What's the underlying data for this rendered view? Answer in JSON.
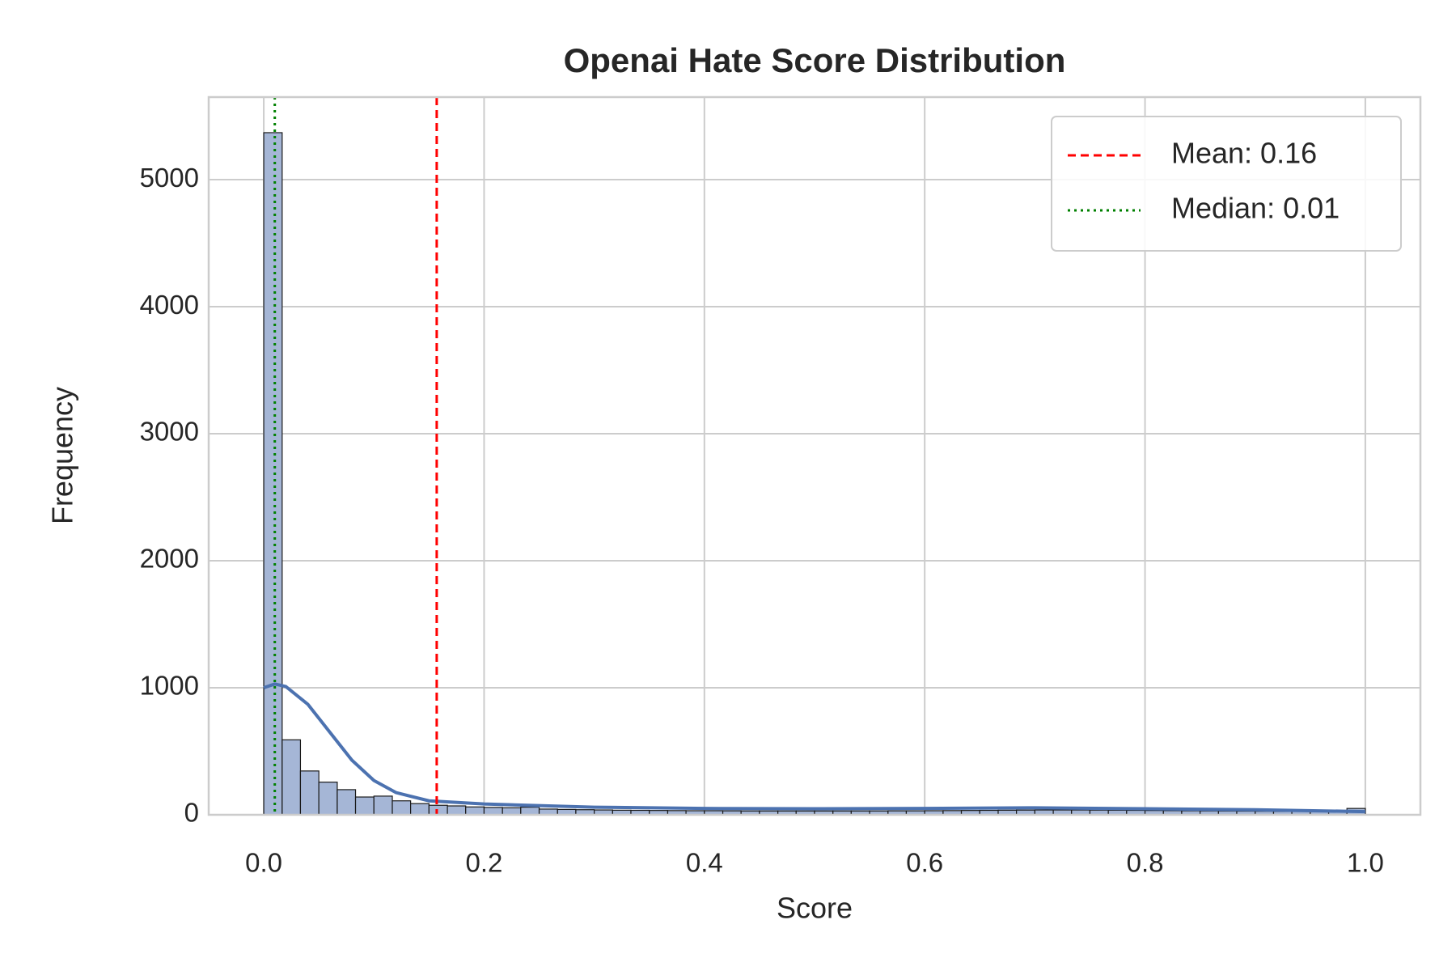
{
  "chart_data": {
    "type": "histogram",
    "title": "Openai Hate Score Distribution",
    "x_label": "Score",
    "y_label": "Frequency",
    "bins": [
      0,
      0.0167,
      0.0333,
      0.05,
      0.0667,
      0.0833,
      0.1,
      0.1167,
      0.1333,
      0.15,
      0.1667,
      0.1833,
      0.2,
      0.2167,
      0.2333,
      0.25,
      0.2667,
      0.2833,
      0.3,
      0.3167,
      0.3333,
      0.35,
      0.3667,
      0.3833,
      0.4,
      0.4167,
      0.4333,
      0.45,
      0.4667,
      0.4833,
      0.5,
      0.5167,
      0.5333,
      0.55,
      0.5667,
      0.5833,
      0.6,
      0.6167,
      0.6333,
      0.65,
      0.6667,
      0.6833,
      0.7,
      0.7167,
      0.7333,
      0.75,
      0.7667,
      0.7833,
      0.8,
      0.8167,
      0.8333,
      0.85,
      0.8667,
      0.8833,
      0.9,
      0.9167,
      0.9333,
      0.95,
      0.9667,
      0.9833,
      1
    ],
    "values": [
      5370,
      590,
      345,
      257,
      198,
      140,
      147,
      110,
      88,
      75,
      70,
      62,
      58,
      55,
      60,
      45,
      42,
      40,
      38,
      36,
      35,
      34,
      33,
      32,
      32,
      31,
      30,
      30,
      30,
      30,
      30,
      30,
      30,
      30,
      31,
      31,
      32,
      33,
      34,
      35,
      36,
      37,
      38,
      38,
      38,
      37,
      36,
      35,
      34,
      33,
      32,
      31,
      30,
      29,
      28,
      27,
      26,
      25,
      24,
      50
    ],
    "color": "#a5b6d6",
    "kde": {
      "color": "#4c72b0",
      "x": [
        0,
        0.01,
        0.02,
        0.04,
        0.06,
        0.08,
        0.1,
        0.12,
        0.15,
        0.2,
        0.3,
        0.4,
        0.5,
        0.6,
        0.7,
        0.8,
        0.9,
        1
      ],
      "values": [
        1000,
        1030,
        1010,
        870,
        650,
        430,
        270,
        175,
        110,
        85,
        60,
        50,
        48,
        50,
        55,
        48,
        40,
        25
      ]
    },
    "lines": [
      {
        "name": "Mean: 0.16",
        "value": 0.157,
        "color": "#ff0000",
        "style": "dashed"
      },
      {
        "name": "Median: 0.01",
        "value": 0.01,
        "color": "#008000",
        "style": "dotted"
      }
    ],
    "xlim": [
      -0.05,
      1.05
    ],
    "ylim": [
      0,
      5650
    ],
    "xticks": [
      {
        "value": 0,
        "label": "0.0"
      },
      0.2,
      0.4,
      0.6,
      0.8,
      {
        "value": 1,
        "label": "1.0"
      }
    ],
    "yticks": [
      0,
      1000,
      2000,
      3000,
      4000,
      5000
    ],
    "grid": true,
    "legend": "upper right"
  }
}
